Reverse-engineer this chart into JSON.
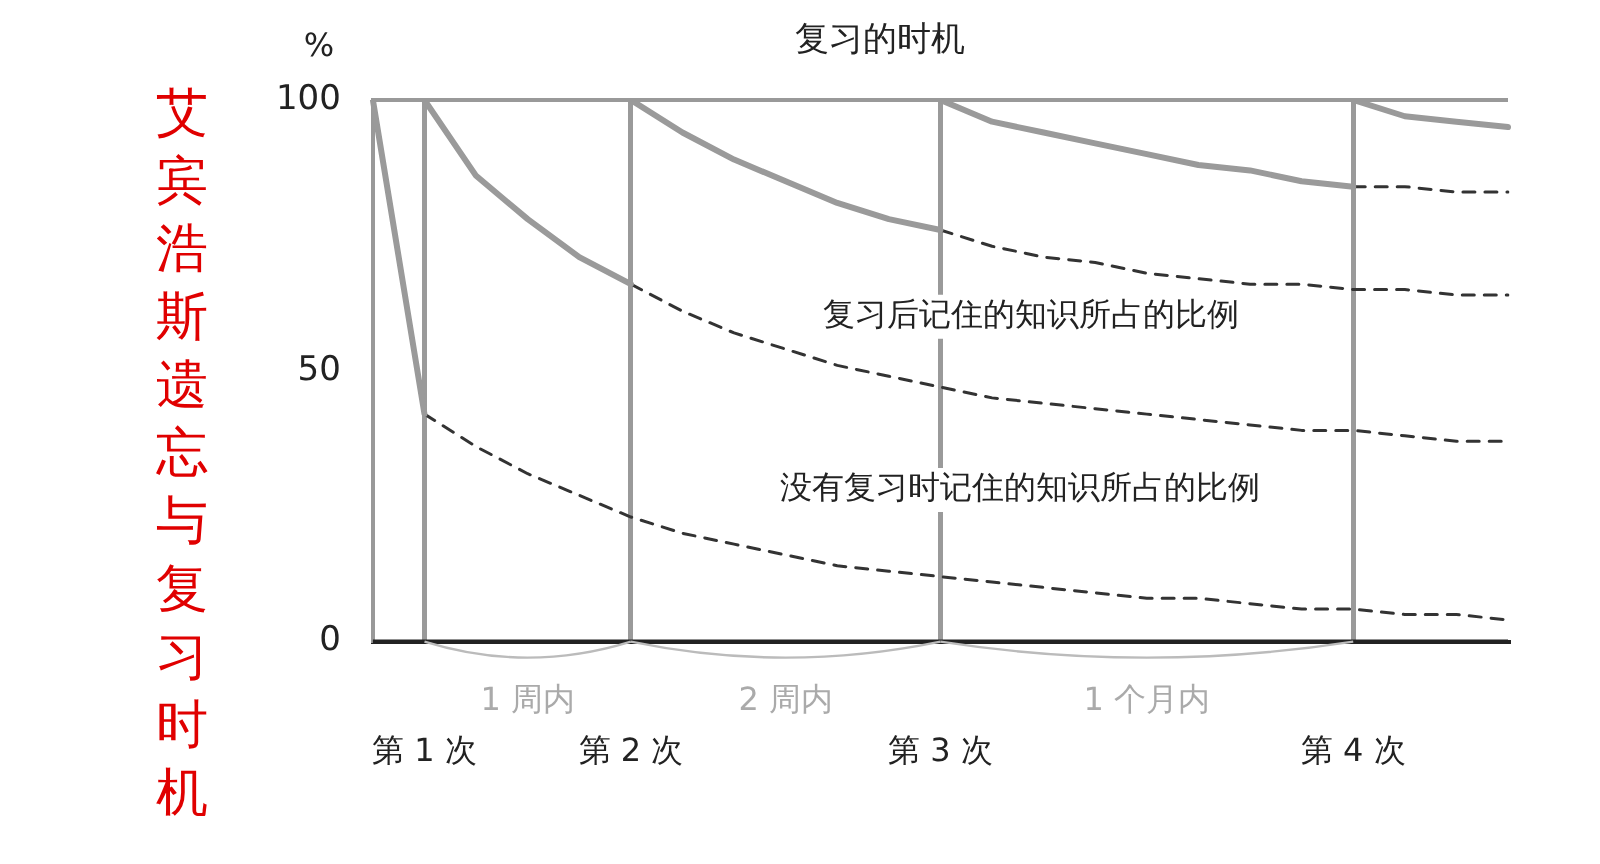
{
  "chart_data": {
    "type": "line",
    "title": "艾宾浩斯遗忘与复习时机",
    "subtitle": "复习的时机",
    "ylabel": "%",
    "categories": [
      null,
      "第 1 次",
      null,
      null,
      null,
      "第 2 次",
      null,
      null,
      null,
      null,
      null,
      "第 3 次",
      null,
      null,
      null,
      null,
      null,
      null,
      null,
      "第 4 次",
      null,
      null,
      null
    ],
    "ylim": [
      0,
      100
    ],
    "yticks": [
      0,
      50,
      100
    ],
    "grid": "x",
    "legend": false,
    "marker": "none",
    "series": [
      {
        "color": "#9a9a9a",
        "line_style": "solid",
        "values": [
          100,
          42,
          null,
          null,
          null,
          null,
          null,
          null,
          null,
          null,
          null,
          null,
          null,
          null,
          null,
          null,
          null,
          null,
          null,
          null,
          null,
          null,
          null
        ]
      },
      {
        "color": "#9a9a9a",
        "line_style": "solid",
        "values": [
          null,
          100,
          86,
          78,
          71,
          66,
          null,
          null,
          null,
          null,
          null,
          null,
          null,
          null,
          null,
          null,
          null,
          null,
          null,
          null,
          null,
          null,
          null
        ]
      },
      {
        "color": "#9a9a9a",
        "line_style": "solid",
        "values": [
          null,
          null,
          null,
          null,
          null,
          100,
          94,
          89,
          85,
          81,
          78,
          76,
          null,
          null,
          null,
          null,
          null,
          null,
          null,
          null,
          null,
          null,
          null
        ]
      },
      {
        "color": "#9a9a9a",
        "line_style": "solid",
        "values": [
          null,
          null,
          null,
          null,
          null,
          null,
          null,
          null,
          null,
          null,
          null,
          100,
          96,
          94,
          92,
          90,
          88,
          87,
          85,
          84,
          null,
          null,
          null
        ]
      },
      {
        "color": "#9a9a9a",
        "line_style": "solid",
        "values": [
          null,
          null,
          null,
          null,
          null,
          null,
          null,
          null,
          null,
          null,
          null,
          null,
          null,
          null,
          null,
          null,
          null,
          null,
          null,
          100,
          97,
          96,
          95
        ]
      },
      {
        "color": "#333333",
        "line_style": "dashed",
        "values": [
          null,
          42,
          36,
          31,
          27,
          23,
          20,
          18,
          16,
          14,
          13,
          12,
          11,
          10,
          9,
          8,
          8,
          7,
          6,
          6,
          5,
          5,
          4
        ]
      },
      {
        "color": "#333333",
        "line_style": "dashed",
        "values": [
          null,
          null,
          null,
          null,
          null,
          66,
          61,
          57,
          54,
          51,
          49,
          47,
          45,
          44,
          43,
          42,
          41,
          40,
          39,
          39,
          38,
          37,
          37
        ]
      },
      {
        "color": "#333333",
        "line_style": "dashed",
        "values": [
          null,
          null,
          null,
          null,
          null,
          null,
          null,
          null,
          null,
          null,
          null,
          76,
          73,
          71,
          70,
          68,
          67,
          66,
          66,
          65,
          65,
          64,
          64
        ]
      },
      {
        "color": "#333333",
        "line_style": "dashed",
        "values": [
          null,
          null,
          null,
          null,
          null,
          null,
          null,
          null,
          null,
          null,
          null,
          null,
          null,
          null,
          null,
          null,
          null,
          null,
          null,
          84,
          84,
          83,
          83
        ]
      }
    ],
    "annotations": [
      "复习后记住的知识所占的比例",
      "没有复习时记住的知识所占的比例",
      "1 周内",
      "2 周内",
      "1 个月内"
    ]
  }
}
